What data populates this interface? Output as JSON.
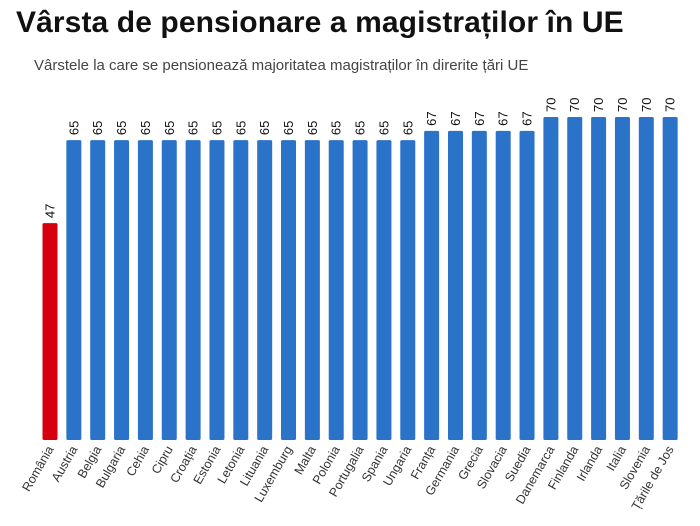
{
  "header": {
    "title": "Vârsta de pensionare a magistraților în UE",
    "subtitle": "Vârstele la care se pensionează majoritatea magistraților în direrite țări UE"
  },
  "chart_data": {
    "type": "bar",
    "title": "Vârsta de pensionare a magistraților în UE",
    "subtitle": "Vârstele la care se pensionează majoritatea magistraților în direrite țări UE",
    "xlabel": "",
    "ylabel": "",
    "categories": [
      "România",
      "Austria",
      "Belgia",
      "Bulgaria",
      "Cehia",
      "Cipru",
      "Croația",
      "Estonia",
      "Letonia",
      "Lituania",
      "Luxemburg",
      "Malta",
      "Polonia",
      "Portugalia",
      "Spania",
      "Ungaria",
      "Franța",
      "Germania",
      "Grecia",
      "Slovacia",
      "Suedia",
      "Danemarca",
      "Finlanda",
      "Irlanda",
      "Italia",
      "Slovenia",
      "Țările de Jos"
    ],
    "values": [
      47,
      65,
      65,
      65,
      65,
      65,
      65,
      65,
      65,
      65,
      65,
      65,
      65,
      65,
      65,
      65,
      67,
      67,
      67,
      67,
      67,
      70,
      70,
      70,
      70,
      70,
      70
    ],
    "ylim": [
      0,
      70
    ],
    "grid": false,
    "highlight_color": "#d7000f",
    "bar_color": "#2a73c9"
  }
}
